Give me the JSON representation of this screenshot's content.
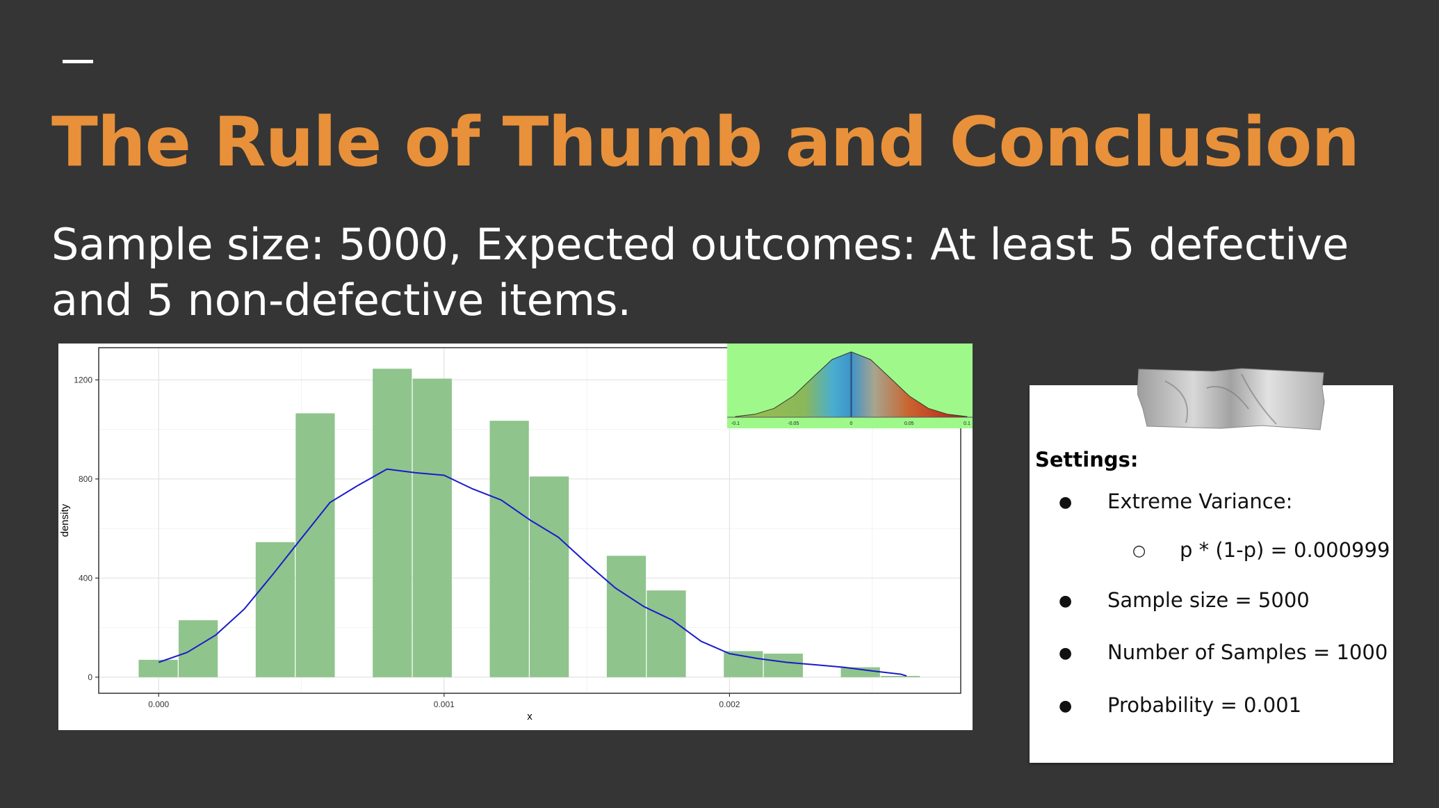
{
  "slide": {
    "title": "The Rule of Thumb and Conclusion",
    "subtitle": "Sample size: 5000, Expected outcomes: At least 5 defective and 5 non-defective items."
  },
  "settings": {
    "heading": "Settings:",
    "items": [
      {
        "level": 1,
        "text": "Extreme Variance:"
      },
      {
        "level": 2,
        "text": "p * (1-p) = 0.000999"
      },
      {
        "level": 1,
        "text": "Sample size = 5000"
      },
      {
        "level": 1,
        "text": "Number of Samples = 1000"
      },
      {
        "level": 1,
        "text": "Probability = 0.001"
      }
    ]
  },
  "colors": {
    "title": "#e8913a",
    "bar_fill": "#8fc48c",
    "density_line": "#1a1acc",
    "inset_bg": "#9ef98a"
  },
  "chart_data": [
    {
      "type": "bar",
      "subtype": "histogram_with_density",
      "xlabel": "x",
      "ylabel": "density",
      "xlim": [
        -0.00021,
        0.00281
      ],
      "ylim": [
        -65,
        1330
      ],
      "x_ticks": [
        0.0,
        0.001,
        0.002
      ],
      "x_tick_labels": [
        "0.000",
        "0.001",
        "0.002"
      ],
      "y_ticks": [
        0,
        400,
        800,
        1200
      ],
      "y_tick_labels": [
        "0",
        "400",
        "800",
        "1200"
      ],
      "grid": true,
      "bar_width": 0.000137,
      "bins": [
        {
          "x0": -7e-05,
          "value": 70
        },
        {
          "x0": 7e-05,
          "value": 230
        },
        {
          "x0": 0.00034,
          "value": 545
        },
        {
          "x0": 0.00048,
          "value": 1065
        },
        {
          "x0": 0.00075,
          "value": 1245
        },
        {
          "x0": 0.00089,
          "value": 1205
        },
        {
          "x0": 0.00116,
          "value": 1035
        },
        {
          "x0": 0.0013,
          "value": 810
        },
        {
          "x0": 0.00157,
          "value": 490
        },
        {
          "x0": 0.00171,
          "value": 350
        },
        {
          "x0": 0.00198,
          "value": 105
        },
        {
          "x0": 0.00212,
          "value": 95
        },
        {
          "x0": 0.00239,
          "value": 40
        },
        {
          "x0": 0.00253,
          "value": 5
        }
      ],
      "density_curve": {
        "x": [
          0.0,
          0.0001,
          0.0002,
          0.0003,
          0.0004,
          0.0005,
          0.0006,
          0.0007,
          0.0008,
          0.0009,
          0.001,
          0.0011,
          0.0012,
          0.0013,
          0.0014,
          0.0015,
          0.0016,
          0.0017,
          0.0018,
          0.0019,
          0.002,
          0.0021,
          0.0022,
          0.0023,
          0.0024,
          0.0025,
          0.0026,
          0.00262
        ],
        "y": [
          60,
          100,
          170,
          275,
          415,
          560,
          705,
          775,
          840,
          825,
          815,
          760,
          715,
          635,
          565,
          460,
          360,
          285,
          230,
          145,
          95,
          75,
          60,
          50,
          40,
          25,
          12,
          5
        ]
      }
    },
    {
      "type": "area",
      "subtype": "normal_curve_inset",
      "x_tick_labels": [
        "-0.1",
        "-0.05",
        "0",
        "0.05",
        "0.1"
      ],
      "curve": {
        "x": [
          -3.0,
          -2.5,
          -2.0,
          -1.5,
          -1.0,
          -0.5,
          0.0,
          0.5,
          1.0,
          1.5,
          2.0,
          2.5,
          3.0
        ],
        "y": [
          0.004,
          0.018,
          0.054,
          0.13,
          0.242,
          0.352,
          0.399,
          0.352,
          0.242,
          0.13,
          0.054,
          0.018,
          0.004
        ]
      }
    }
  ]
}
